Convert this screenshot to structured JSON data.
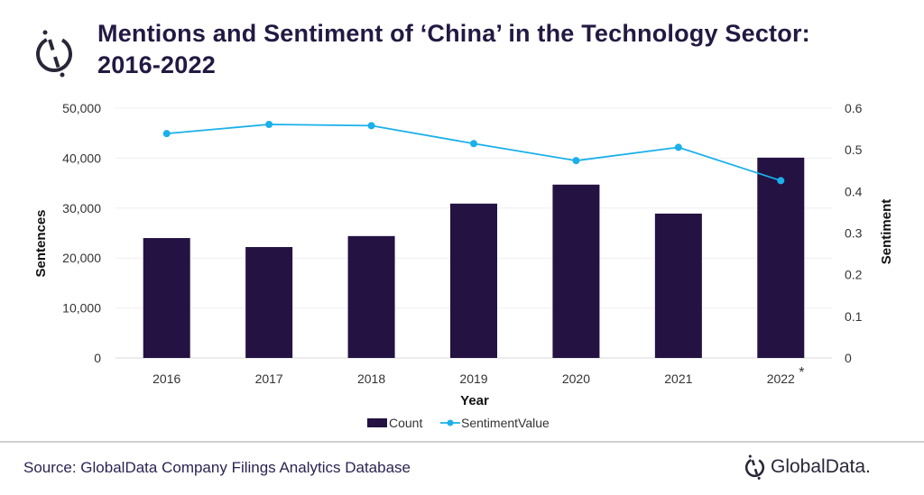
{
  "title_line1": "Mentions and Sentiment of ‘China’ in the Technology Sector:",
  "title_line2": "2016-2022",
  "source": "Source: GlobalData Company Filings Analytics Database",
  "logo_text": "GlobalData.",
  "colors": {
    "bar": "#231242",
    "line": "#1ab0ea",
    "title": "#231942"
  },
  "chart_data": {
    "type": "bar+line",
    "categories": [
      "2016",
      "2017",
      "2018",
      "2019",
      "2020",
      "2021",
      "2022"
    ],
    "category_note": {
      "2022": "*"
    },
    "xlabel": "Year",
    "ylabel": "Sentences",
    "y2label": "Sentiment",
    "ylim": [
      0,
      50000
    ],
    "y2lim": [
      0,
      0.6
    ],
    "yticks": [
      "0",
      "10,000",
      "20,000",
      "30,000",
      "40,000",
      "50,000"
    ],
    "y2ticks": [
      "0",
      "0.1",
      "0.2",
      "0.3",
      "0.4",
      "0.5",
      "0.6"
    ],
    "grid": true,
    "legend_position": "bottom",
    "series": [
      {
        "name": "Count",
        "type": "bar",
        "axis": "left",
        "values": [
          24000,
          22200,
          24400,
          30900,
          34700,
          28900,
          40100
        ]
      },
      {
        "name": "SentimentValue",
        "type": "line",
        "axis": "right",
        "values": [
          0.539,
          0.561,
          0.558,
          0.515,
          0.474,
          0.506,
          0.426
        ]
      }
    ]
  }
}
